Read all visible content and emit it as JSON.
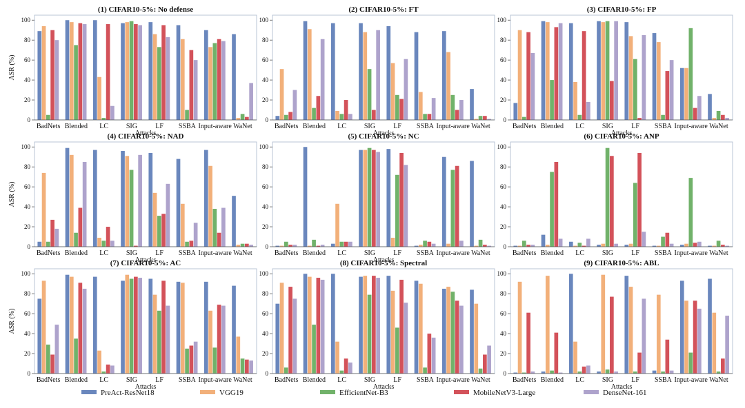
{
  "legend": {
    "position": "bottom",
    "entries": [
      {
        "name": "PreAct-ResNet18",
        "color": "#6a87bd"
      },
      {
        "name": "VGG19",
        "color": "#f2b07a"
      },
      {
        "name": "EfficientNet-B3",
        "color": "#71b26a"
      },
      {
        "name": "MobileNetV3-Large",
        "color": "#d3525a"
      },
      {
        "name": "DenseNet-161",
        "color": "#aea3cc"
      }
    ]
  },
  "chart_data": [
    {
      "type": "bar",
      "title": "(1) CIFAR10-5%: No defense",
      "xlabel": "Attacks",
      "ylabel": "ASR (%)",
      "ylim": [
        0,
        105
      ],
      "yticks": [
        "0",
        "20",
        "40",
        "60",
        "80",
        "100"
      ],
      "categories": [
        "BadNets",
        "Blended",
        "LC",
        "SIG",
        "LF",
        "SSBA",
        "Input-aware",
        "WaNet"
      ],
      "series": [
        {
          "name": "PreAct-ResNet18",
          "values": [
            89,
            100,
            100,
            97,
            98,
            95,
            90,
            86
          ]
        },
        {
          "name": "VGG19",
          "values": [
            94,
            98,
            43,
            98,
            86,
            81,
            73,
            2
          ]
        },
        {
          "name": "EfficientNet-B3",
          "values": [
            5,
            75,
            2,
            99,
            73,
            10,
            77,
            6
          ]
        },
        {
          "name": "MobileNetV3-Large",
          "values": [
            90,
            97,
            96,
            96,
            95,
            70,
            81,
            3
          ]
        },
        {
          "name": "DenseNet-161",
          "values": [
            80,
            96,
            14,
            95,
            83,
            60,
            79,
            37
          ]
        }
      ]
    },
    {
      "type": "bar",
      "title": "(2) CIFAR10-5%: FT",
      "xlabel": "Attacks",
      "ylabel": "",
      "ylim": [
        0,
        105
      ],
      "yticks": [
        "0",
        "20",
        "40",
        "60",
        "80",
        "100"
      ],
      "categories": [
        "BadNets",
        "Blended",
        "LC",
        "SIG",
        "LF",
        "SSBA",
        "Input-aware",
        "WaNet"
      ],
      "series": [
        {
          "name": "PreAct-ResNet18",
          "values": [
            4,
            99,
            97,
            97,
            94,
            88,
            89,
            31
          ]
        },
        {
          "name": "VGG19",
          "values": [
            51,
            91,
            9,
            88,
            57,
            28,
            68,
            1
          ]
        },
        {
          "name": "EfficientNet-B3",
          "values": [
            5,
            12,
            6,
            51,
            25,
            6,
            25,
            4
          ]
        },
        {
          "name": "MobileNetV3-Large",
          "values": [
            8,
            24,
            20,
            10,
            21,
            6,
            10,
            4
          ]
        },
        {
          "name": "DenseNet-161",
          "values": [
            30,
            81,
            6,
            90,
            61,
            22,
            20,
            1
          ]
        }
      ]
    },
    {
      "type": "bar",
      "title": "(3) CIFAR10-5%: FP",
      "xlabel": "Attacks",
      "ylabel": "",
      "ylim": [
        0,
        105
      ],
      "yticks": [
        "0",
        "20",
        "40",
        "60",
        "80",
        "100"
      ],
      "categories": [
        "BadNets",
        "Blended",
        "LC",
        "SIG",
        "LF",
        "SSBA",
        "Input-aware",
        "WaNet"
      ],
      "series": [
        {
          "name": "PreAct-ResNet18",
          "values": [
            17,
            99,
            97,
            99,
            98,
            87,
            52,
            26
          ]
        },
        {
          "name": "VGG19",
          "values": [
            90,
            98,
            38,
            98,
            84,
            78,
            52,
            2
          ]
        },
        {
          "name": "EfficientNet-B3",
          "values": [
            3,
            40,
            5,
            99,
            61,
            5,
            92,
            9
          ]
        },
        {
          "name": "MobileNetV3-Large",
          "values": [
            88,
            93,
            89,
            39,
            2,
            49,
            12,
            5
          ]
        },
        {
          "name": "DenseNet-161",
          "values": [
            67,
            97,
            18,
            99,
            85,
            60,
            24,
            2
          ]
        }
      ]
    },
    {
      "type": "bar",
      "title": "(4) CIFAR10-5%: NAD",
      "xlabel": "Attacks",
      "ylabel": "ASR (%)",
      "ylim": [
        0,
        105
      ],
      "yticks": [
        "0",
        "20",
        "40",
        "60",
        "80",
        "100"
      ],
      "categories": [
        "BadNets",
        "Blended",
        "LC",
        "SIG",
        "LF",
        "SSBA",
        "Input-aware",
        "WaNet"
      ],
      "series": [
        {
          "name": "PreAct-ResNet18",
          "values": [
            5,
            99,
            97,
            96,
            94,
            88,
            97,
            51
          ]
        },
        {
          "name": "VGG19",
          "values": [
            74,
            92,
            9,
            91,
            54,
            43,
            81,
            2
          ]
        },
        {
          "name": "EfficientNet-B3",
          "values": [
            5,
            14,
            6,
            77,
            31,
            5,
            38,
            3
          ]
        },
        {
          "name": "MobileNetV3-Large",
          "values": [
            27,
            39,
            20,
            1,
            33,
            6,
            14,
            3
          ]
        },
        {
          "name": "DenseNet-161",
          "values": [
            18,
            85,
            6,
            92,
            63,
            24,
            39,
            2
          ]
        }
      ]
    },
    {
      "type": "bar",
      "title": "(5) CIFAR10-5%: NC",
      "xlabel": "Attacks",
      "ylabel": "",
      "ylim": [
        0,
        105
      ],
      "yticks": [
        "0",
        "20",
        "40",
        "60",
        "80",
        "100"
      ],
      "categories": [
        "BadNets",
        "Blended",
        "LC",
        "SIG",
        "LF",
        "SSBA",
        "Input-aware",
        "WaNet"
      ],
      "series": [
        {
          "name": "PreAct-ResNet18",
          "values": [
            1,
            100,
            3,
            97,
            98,
            1,
            90,
            86
          ]
        },
        {
          "name": "VGG19",
          "values": [
            1,
            1,
            43,
            97,
            9,
            2,
            3,
            1
          ]
        },
        {
          "name": "EfficientNet-B3",
          "values": [
            5,
            7,
            5,
            99,
            72,
            6,
            77,
            7
          ]
        },
        {
          "name": "MobileNetV3-Large",
          "values": [
            2,
            1,
            5,
            97,
            94,
            5,
            81,
            2
          ]
        },
        {
          "name": "DenseNet-161",
          "values": [
            2,
            2,
            5,
            95,
            82,
            3,
            6,
            1
          ]
        }
      ]
    },
    {
      "type": "bar",
      "title": "(6) CIFAR10-5%: ANP",
      "xlabel": "",
      "ylabel": "",
      "ylim": [
        0,
        105
      ],
      "yticks": [
        "0",
        "20",
        "40",
        "60",
        "80",
        "100"
      ],
      "categories": [
        "BadNets",
        "Blended",
        "LC",
        "SIG",
        "LF",
        "SSBA",
        "Input-aware",
        "WaNet"
      ],
      "series": [
        {
          "name": "PreAct-ResNet18",
          "values": [
            1,
            12,
            5,
            2,
            2,
            1,
            2,
            1
          ]
        },
        {
          "name": "VGG19",
          "values": [
            1,
            2,
            1,
            3,
            3,
            1,
            3,
            1
          ]
        },
        {
          "name": "EfficientNet-B3",
          "values": [
            6,
            75,
            4,
            99,
            64,
            10,
            69,
            6
          ]
        },
        {
          "name": "MobileNetV3-Large",
          "values": [
            2,
            85,
            1,
            91,
            94,
            14,
            4,
            2
          ]
        },
        {
          "name": "DenseNet-161",
          "values": [
            2,
            8,
            8,
            3,
            15,
            3,
            5,
            1
          ]
        }
      ]
    },
    {
      "type": "bar",
      "title": "(7) CIFAR10-5%: AC",
      "xlabel": "Attacks",
      "ylabel": "ASR (%)",
      "ylim": [
        0,
        105
      ],
      "yticks": [
        "0",
        "20",
        "40",
        "60",
        "80",
        "100"
      ],
      "categories": [
        "BadNets",
        "Blended",
        "LC",
        "SIG",
        "LF",
        "SSBA",
        "Input-aware",
        "WaNet"
      ],
      "series": [
        {
          "name": "PreAct-ResNet18",
          "values": [
            75,
            99,
            97,
            93,
            95,
            92,
            92,
            88
          ]
        },
        {
          "name": "VGG19",
          "values": [
            93,
            97,
            23,
            99,
            79,
            91,
            63,
            37
          ]
        },
        {
          "name": "EfficientNet-B3",
          "values": [
            29,
            35,
            2,
            95,
            63,
            25,
            26,
            15
          ]
        },
        {
          "name": "MobileNetV3-Large",
          "values": [
            19,
            91,
            9,
            97,
            93,
            28,
            69,
            14
          ]
        },
        {
          "name": "DenseNet-161",
          "values": [
            49,
            85,
            8,
            96,
            68,
            32,
            68,
            13
          ]
        }
      ]
    },
    {
      "type": "bar",
      "title": "(8) CIFAR10-5%: Spectral",
      "xlabel": "Attacks",
      "ylabel": "",
      "ylim": [
        0,
        105
      ],
      "yticks": [
        "0",
        "20",
        "40",
        "60",
        "80",
        "100"
      ],
      "categories": [
        "BadNets",
        "Blended",
        "LC",
        "SIG",
        "LF",
        "SSBA",
        "Input-aware",
        "WaNet"
      ],
      "series": [
        {
          "name": "PreAct-ResNet18",
          "values": [
            70,
            100,
            100,
            97,
            98,
            93,
            85,
            84
          ]
        },
        {
          "name": "VGG19",
          "values": [
            91,
            97,
            32,
            98,
            83,
            90,
            87,
            70
          ]
        },
        {
          "name": "EfficientNet-B3",
          "values": [
            6,
            49,
            3,
            79,
            46,
            6,
            82,
            5
          ]
        },
        {
          "name": "MobileNetV3-Large",
          "values": [
            87,
            96,
            15,
            98,
            94,
            40,
            73,
            19
          ]
        },
        {
          "name": "DenseNet-161",
          "values": [
            75,
            94,
            11,
            96,
            71,
            36,
            68,
            28
          ]
        }
      ]
    },
    {
      "type": "bar",
      "title": "(9) CIFAR10-5%: ABL",
      "xlabel": "Attacks",
      "ylabel": "",
      "ylim": [
        0,
        105
      ],
      "yticks": [
        "0",
        "20",
        "40",
        "60",
        "80",
        "100"
      ],
      "categories": [
        "BadNets",
        "Blended",
        "LC",
        "SIG",
        "LF",
        "SSBA",
        "Input-aware",
        "WaNet"
      ],
      "series": [
        {
          "name": "PreAct-ResNet18",
          "values": [
            1,
            2,
            100,
            2,
            98,
            3,
            93,
            95
          ]
        },
        {
          "name": "VGG19",
          "values": [
            92,
            98,
            32,
            99,
            87,
            79,
            73,
            61
          ]
        },
        {
          "name": "EfficientNet-B3",
          "values": [
            1,
            3,
            2,
            4,
            2,
            2,
            21,
            2
          ]
        },
        {
          "name": "MobileNetV3-Large",
          "values": [
            61,
            41,
            7,
            77,
            21,
            34,
            73,
            15
          ]
        },
        {
          "name": "DenseNet-161",
          "values": [
            2,
            1,
            8,
            2,
            75,
            3,
            65,
            58
          ]
        }
      ]
    }
  ]
}
